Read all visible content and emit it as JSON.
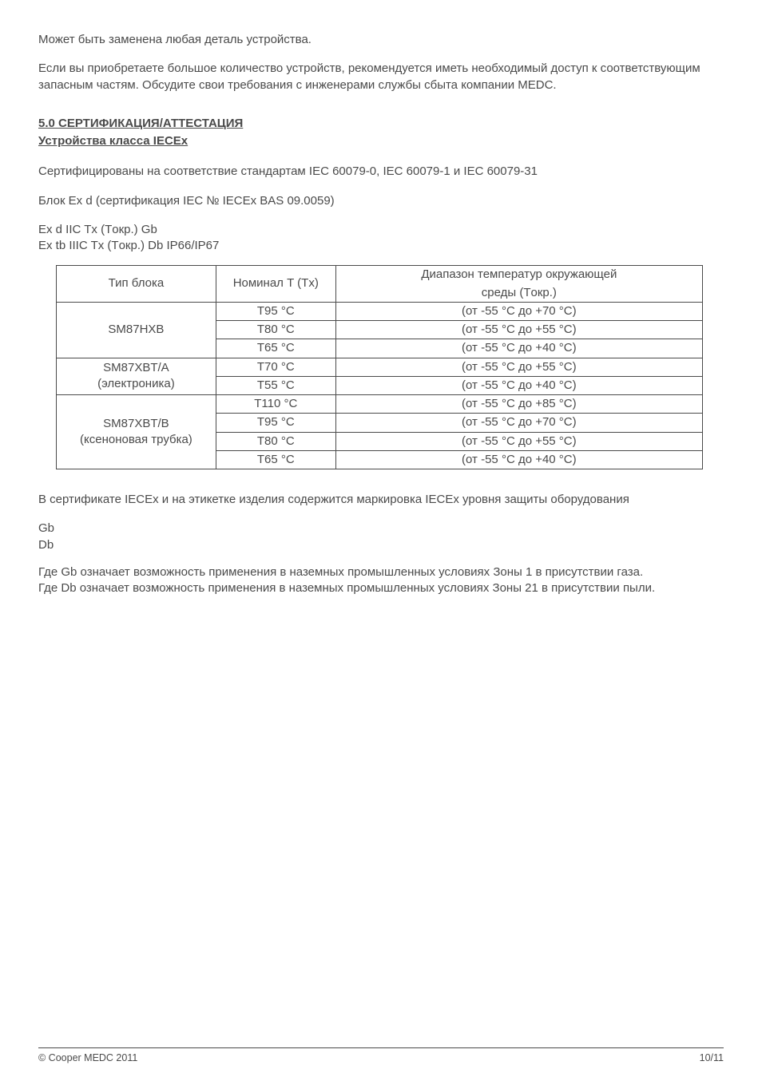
{
  "intro": {
    "p1": "Может быть заменена любая деталь устройства.",
    "p2": "Если вы приобретаете большое количество устройств, рекомендуется иметь необходимый доступ к соответствующим запасным частям. Обсудите свои требования с инженерами службы сбыта компании MEDC."
  },
  "section": {
    "heading": "5.0 СЕРТИФИКАЦИЯ/АТТЕСТАЦИЯ",
    "subheading": "Устройства класса IECEx",
    "p1": "Сертифицированы на соответствие стандартам IEC 60079-0, IEC 60079-1 и IEC 60079-31",
    "p2": "Блок Ex d (сертификация IEC № IECEx BAS 09.0059)",
    "code1": "Ex d IIC Tx (Tокр.) Gb",
    "code2": "Ex tb IIIC Tx (Tокр.) Db IP66/IP67"
  },
  "table": {
    "header": {
      "unit": "Тип блока",
      "t": "Номинал T (Tx)",
      "range_l1": "Диапазон температур окружающей",
      "range_l2": "среды (Tокр.)"
    },
    "groups": [
      {
        "unit_lines": [
          "SM87HXB"
        ],
        "rows": [
          {
            "t": "T95 °C",
            "range": "(от -55 °C до +70 °C)"
          },
          {
            "t": "T80 °C",
            "range": "(от -55 °C до +55 °C)"
          },
          {
            "t": "T65 °C",
            "range": "(от -55 °C до +40 °C)"
          }
        ]
      },
      {
        "unit_lines": [
          "SM87XBT/A",
          "(электроника)"
        ],
        "rows": [
          {
            "t": "T70 °C",
            "range": "(от -55 °C до +55 °C)"
          },
          {
            "t": "T55 °C",
            "range": "(от -55 °C до +40 °C)"
          }
        ]
      },
      {
        "unit_lines": [
          "SM87XBT/B",
          "(ксеноновая трубка)"
        ],
        "rows": [
          {
            "t": "T110 °C",
            "range": "(от -55 °C до +85 °C)"
          },
          {
            "t": "T95 °C",
            "range": "(от -55 °C до +70 °C)"
          },
          {
            "t": "T80 °C",
            "range": "(от -55 °C до +55 °C)"
          },
          {
            "t": "T65 °C",
            "range": "(от -55 °C до +40 °C)"
          }
        ]
      }
    ]
  },
  "after_table": {
    "p1": "В сертификате IECEx и на этикетке изделия содержится маркировка IECEx уровня защиты оборудования",
    "epl1": "Gb",
    "epl2": "Db",
    "p2": "Где Gb означает возможность применения в наземных промышленных условиях Зоны 1 в присутствии газа.",
    "p3": "Где Db означает возможность применения в наземных промышленных условиях Зоны 21 в присутствии пыли."
  },
  "footer": {
    "left": "© Cooper MEDC 2011",
    "right": "10/11"
  }
}
